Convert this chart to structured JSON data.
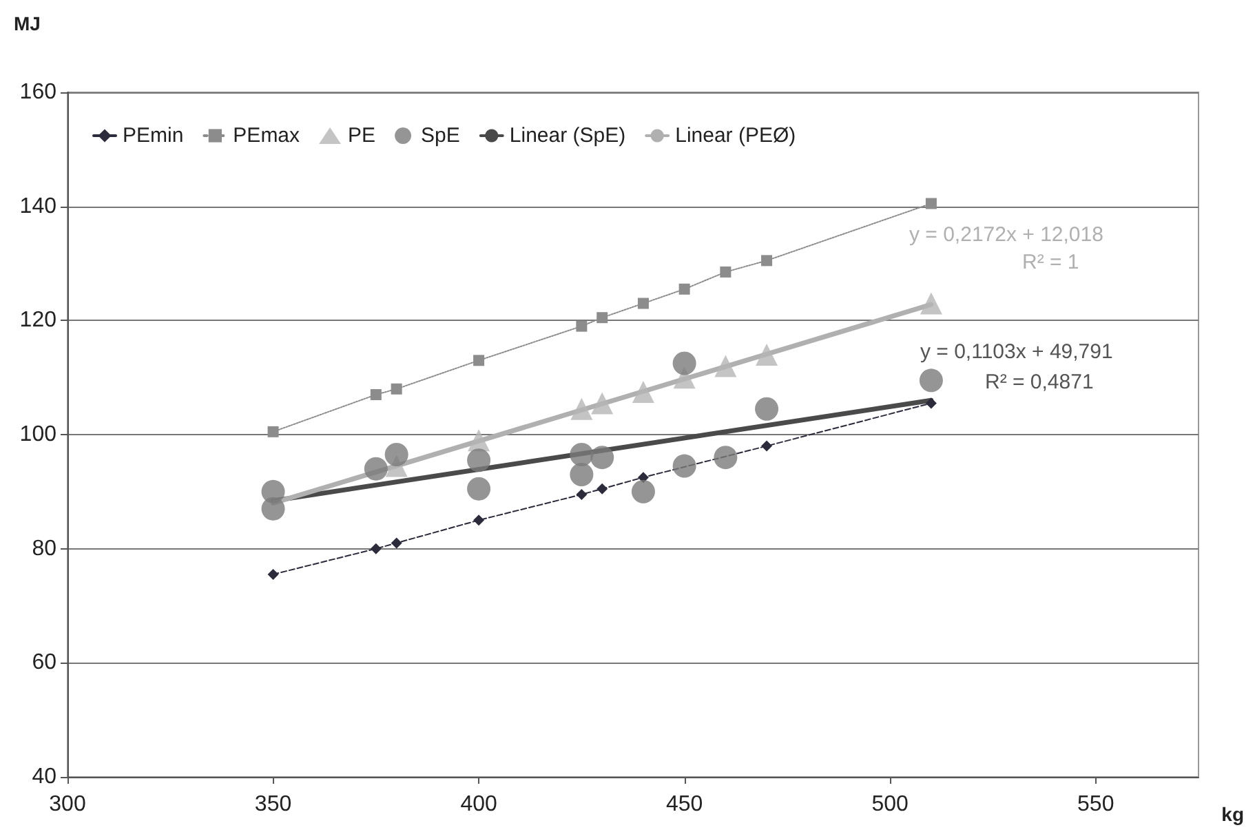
{
  "chart_data": {
    "type": "line",
    "xlabel": "kg",
    "ylabel": "MJ",
    "xlim": [
      300,
      575
    ],
    "xticks": [
      300,
      350,
      400,
      450,
      500,
      550
    ],
    "ylim": [
      40,
      160
    ],
    "yticks": [
      40,
      60,
      80,
      100,
      120,
      140,
      160
    ],
    "grid": "y",
    "legend": "top",
    "annotations": [
      "y = 0,2172x + 12,018",
      "R² = 1",
      "y = 0,1103x + 49,791",
      "R² = 0,4871"
    ],
    "series": [
      {
        "name": "PEmin",
        "color": "#2b2b3b",
        "marker": "diamond",
        "line_style": "dashed",
        "x": [
          350,
          375,
          380,
          400,
          425,
          430,
          440,
          470,
          510
        ],
        "values": [
          75.5,
          80,
          81,
          85,
          89.5,
          90.5,
          92.5,
          98,
          105.5
        ]
      },
      {
        "name": "PEmax",
        "color": "#8c8c8c",
        "marker": "square",
        "line_style": "dotted",
        "x": [
          350,
          375,
          380,
          400,
          425,
          430,
          440,
          450,
          460,
          470,
          510
        ],
        "values": [
          100.5,
          107,
          108,
          113,
          119,
          120.5,
          123,
          125.5,
          128.5,
          130.5,
          140.5
        ]
      },
      {
        "name": "PE",
        "type": "scatter",
        "color": "#b5b5b5",
        "marker": "triangle",
        "x": [
          380,
          400,
          425,
          430,
          440,
          450,
          460,
          470,
          510
        ],
        "values": [
          94.5,
          99,
          104.5,
          105.5,
          107.5,
          110,
          112,
          114,
          123
        ]
      },
      {
        "name": "SpE",
        "type": "scatter",
        "color": "#7a7a7a",
        "marker": "circle",
        "x": [
          350,
          350,
          375,
          380,
          400,
          400,
          425,
          425,
          430,
          440,
          450,
          450,
          460,
          470,
          510
        ],
        "values": [
          90,
          87,
          94,
          96.5,
          95.5,
          90.5,
          96.5,
          93,
          96,
          90,
          94.5,
          112.5,
          96,
          104.5,
          109.5
        ]
      },
      {
        "name": "Linear (SpE)",
        "color": "#4a4a4a",
        "marker": "none",
        "line_style": "solid",
        "x": [
          350,
          510
        ],
        "values": [
          88.4,
          106
        ]
      },
      {
        "name": "Linear (PEØ)",
        "color": "#b0b0b0",
        "marker": "none",
        "line_style": "solid",
        "x": [
          350,
          510
        ],
        "values": [
          88,
          122.8
        ]
      }
    ]
  }
}
